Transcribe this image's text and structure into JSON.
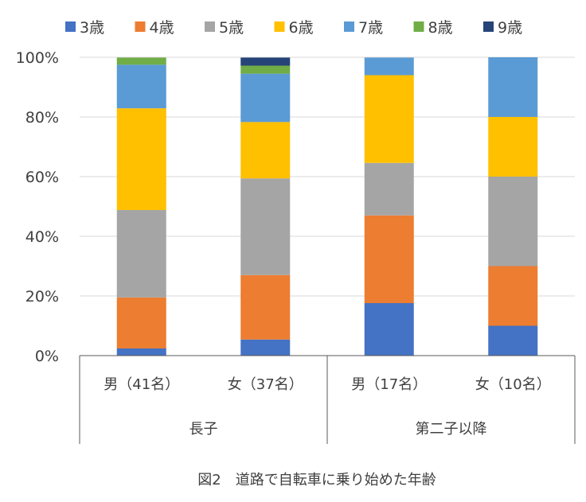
{
  "chart_data": {
    "type": "bar",
    "stacked": true,
    "title": "図2　道路で自転車に乗り始めた年齢",
    "categories": [
      "男（41名）",
      "女（37名）",
      "男（17名）",
      "女（10名）"
    ],
    "groups": [
      {
        "label": "長子",
        "categories": [
          0,
          1
        ]
      },
      {
        "label": "第二子以降",
        "categories": [
          2,
          3
        ]
      }
    ],
    "series": [
      {
        "name": "3歳",
        "color": "#4472C4",
        "values": [
          2.4,
          5.4,
          17.6,
          10
        ]
      },
      {
        "name": "4歳",
        "color": "#ED7D31",
        "values": [
          17.1,
          21.6,
          29.4,
          20
        ]
      },
      {
        "name": "5歳",
        "color": "#A5A5A5",
        "values": [
          29.3,
          32.4,
          17.6,
          30
        ]
      },
      {
        "name": "6歳",
        "color": "#FFC000",
        "values": [
          34.1,
          18.9,
          29.4,
          20
        ]
      },
      {
        "name": "7歳",
        "color": "#5B9BD5",
        "values": [
          14.6,
          16.2,
          5.9,
          20
        ]
      },
      {
        "name": "8歳",
        "color": "#70AD47",
        "values": [
          2.4,
          2.7,
          0,
          0
        ]
      },
      {
        "name": "9歳",
        "color": "#264478",
        "values": [
          0,
          2.7,
          0,
          0
        ]
      }
    ],
    "ylim": [
      0,
      100
    ],
    "yticks": [
      "0%",
      "20%",
      "40%",
      "60%",
      "80%",
      "100%"
    ],
    "grid": true,
    "legend": "top"
  }
}
